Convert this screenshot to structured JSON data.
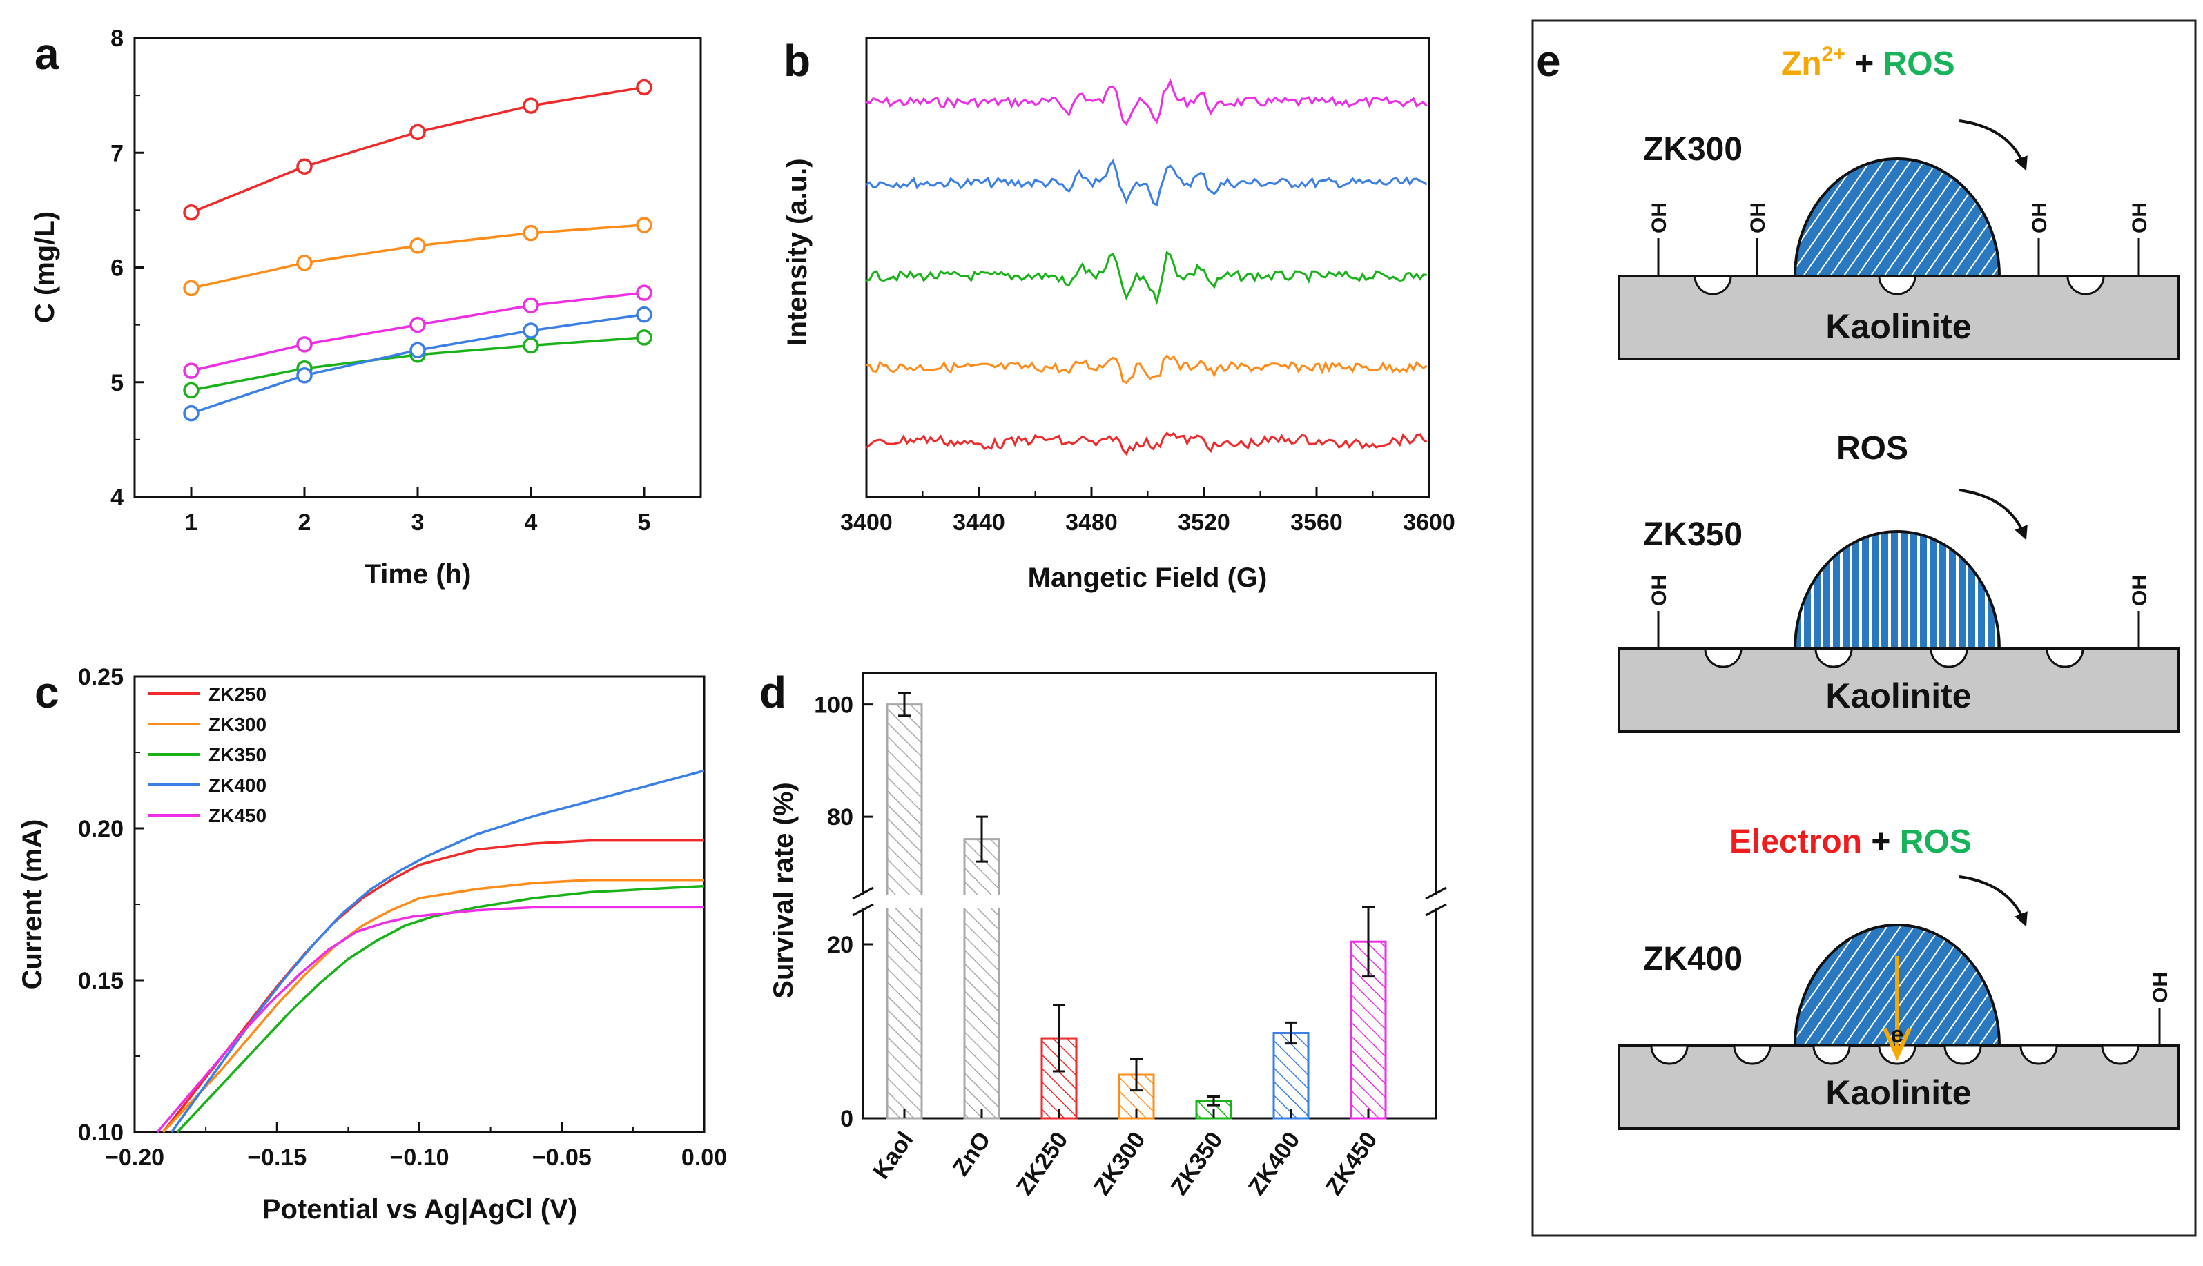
{
  "colors": {
    "ZK250": "#f02a2a",
    "ZK300": "#ff8c1a",
    "ZK350": "#19b319",
    "ZK400": "#3a7fe6",
    "ZK450": "#ee2ee6",
    "Kaol": "#a8a8a8",
    "ZnO": "#a8a8a8",
    "bead": "#2a78c0",
    "orange": "#f7a800",
    "green": "#17b35a",
    "red": "#ee1c1c"
  },
  "chart_data": [
    {
      "panel": "a",
      "type": "line",
      "xlabel": "Time (h)",
      "ylabel": "C (mg/L)",
      "xlim": [
        0.5,
        5.5
      ],
      "ylim": [
        4,
        8
      ],
      "x": [
        1,
        2,
        3,
        4,
        5
      ],
      "xticks": [
        "1",
        "2",
        "3",
        "4",
        "5"
      ],
      "yticks": [
        "4",
        "5",
        "6",
        "7",
        "8"
      ],
      "series": [
        {
          "name": "ZK250",
          "values": [
            6.48,
            6.88,
            7.18,
            7.41,
            7.57
          ]
        },
        {
          "name": "ZK300",
          "values": [
            5.82,
            6.04,
            6.19,
            6.3,
            6.37
          ]
        },
        {
          "name": "ZK450",
          "values": [
            5.1,
            5.33,
            5.5,
            5.67,
            5.78
          ]
        },
        {
          "name": "ZK350",
          "values": [
            4.93,
            5.12,
            5.24,
            5.32,
            5.39
          ]
        },
        {
          "name": "ZK400",
          "values": [
            4.73,
            5.06,
            5.28,
            5.45,
            5.59
          ]
        }
      ]
    },
    {
      "panel": "b",
      "type": "line",
      "xlabel": "Mangetic Field (G)",
      "ylabel": "Intensity (a.u.)",
      "xlim": [
        3400,
        3600
      ],
      "xticks": [
        "3400",
        "3440",
        "3480",
        "3520",
        "3560",
        "3600"
      ],
      "peaks_G": [
        3474,
        3490,
        3505,
        3521
      ],
      "series": [
        {
          "name": "ZK450",
          "offset": 5,
          "peak_scale": 1.1
        },
        {
          "name": "ZK400",
          "offset": 4,
          "peak_scale": 1.1
        },
        {
          "name": "ZK350",
          "offset": 3,
          "peak_scale": 1.3
        },
        {
          "name": "ZK300",
          "offset": 2,
          "peak_scale": 0.8
        },
        {
          "name": "ZK250",
          "offset": 1,
          "peak_scale": 0.5
        }
      ]
    },
    {
      "panel": "c",
      "type": "line",
      "xlabel": "Potential vs Ag|AgCl (V)",
      "ylabel": "Current (mA)",
      "xlim": [
        -0.2,
        0.0
      ],
      "ylim": [
        0.1,
        0.25
      ],
      "xticks": [
        "−0.20",
        "−0.15",
        "−0.10",
        "−0.05",
        "0.00"
      ],
      "yticks": [
        "0.10",
        "0.15",
        "0.20",
        "0.25"
      ],
      "legend": [
        "ZK250",
        "ZK300",
        "ZK350",
        "ZK400",
        "ZK450"
      ],
      "legend_position": "top-left",
      "series": [
        {
          "name": "ZK250",
          "x": [
            -0.19,
            -0.18,
            -0.17,
            -0.16,
            -0.15,
            -0.14,
            -0.13,
            -0.12,
            -0.11,
            -0.1,
            -0.08,
            -0.06,
            -0.04,
            -0.02,
            0.0
          ],
          "y": [
            0.1,
            0.112,
            0.124,
            0.136,
            0.148,
            0.159,
            0.169,
            0.177,
            0.183,
            0.188,
            0.193,
            0.195,
            0.196,
            0.196,
            0.196
          ]
        },
        {
          "name": "ZK300",
          "x": [
            -0.19,
            -0.18,
            -0.17,
            -0.16,
            -0.15,
            -0.14,
            -0.13,
            -0.12,
            -0.11,
            -0.1,
            -0.08,
            -0.06,
            -0.04,
            -0.02,
            0.0
          ],
          "y": [
            0.1,
            0.11,
            0.12,
            0.131,
            0.142,
            0.152,
            0.161,
            0.168,
            0.173,
            0.177,
            0.18,
            0.182,
            0.183,
            0.183,
            0.183
          ]
        },
        {
          "name": "ZK350",
          "x": [
            -0.185,
            -0.175,
            -0.165,
            -0.155,
            -0.145,
            -0.135,
            -0.125,
            -0.115,
            -0.105,
            -0.095,
            -0.08,
            -0.06,
            -0.04,
            -0.02,
            0.0
          ],
          "y": [
            0.1,
            0.11,
            0.12,
            0.13,
            0.14,
            0.149,
            0.157,
            0.163,
            0.168,
            0.171,
            0.174,
            0.177,
            0.179,
            0.18,
            0.181
          ]
        },
        {
          "name": "ZK400",
          "x": [
            -0.187,
            -0.177,
            -0.167,
            -0.157,
            -0.147,
            -0.137,
            -0.127,
            -0.117,
            -0.107,
            -0.097,
            -0.08,
            -0.06,
            -0.04,
            -0.02,
            0.0
          ],
          "y": [
            0.1,
            0.113,
            0.126,
            0.139,
            0.151,
            0.162,
            0.172,
            0.18,
            0.186,
            0.191,
            0.198,
            0.204,
            0.209,
            0.214,
            0.219
          ]
        },
        {
          "name": "ZK450",
          "x": [
            -0.192,
            -0.182,
            -0.172,
            -0.162,
            -0.152,
            -0.142,
            -0.132,
            -0.122,
            -0.112,
            -0.102,
            -0.08,
            -0.06,
            -0.04,
            -0.02,
            0.0
          ],
          "y": [
            0.1,
            0.111,
            0.122,
            0.133,
            0.143,
            0.152,
            0.16,
            0.166,
            0.169,
            0.171,
            0.173,
            0.174,
            0.174,
            0.174,
            0.174
          ]
        }
      ]
    },
    {
      "panel": "d",
      "type": "bar",
      "ylabel": "Survival rate (%)",
      "broken_axis": {
        "lower": [
          0,
          25
        ],
        "upper": [
          65,
          105
        ]
      },
      "yticks": [
        "0",
        "20",
        "80",
        "100"
      ],
      "categories": [
        "Kaol",
        "ZnO",
        "ZK250",
        "ZK300",
        "ZK350",
        "ZK400",
        "ZK450"
      ],
      "values": [
        100,
        76,
        9.2,
        5.0,
        2.0,
        9.8,
        20.3
      ],
      "errors": [
        2.0,
        4.0,
        3.8,
        1.8,
        0.5,
        1.2,
        4.0
      ]
    }
  ],
  "panel_labels": {
    "a": "a",
    "b": "b",
    "c": "c",
    "d": "d",
    "e": "e"
  },
  "schematic": {
    "top": {
      "sample": "ZK300",
      "species_a": "Zn",
      "sup": "2+",
      "plus": " + ",
      "species_b": "ROS",
      "substrate": "Kaolinite",
      "oh": "OH"
    },
    "middle": {
      "sample": "ZK350",
      "species_b": "ROS",
      "substrate": "Kaolinite",
      "oh": "OH"
    },
    "bottom": {
      "sample": "ZK400",
      "species_a": "Electron",
      "plus": " + ",
      "species_b": "ROS",
      "substrate": "Kaolinite",
      "oh": "OH",
      "electron": "e"
    }
  }
}
